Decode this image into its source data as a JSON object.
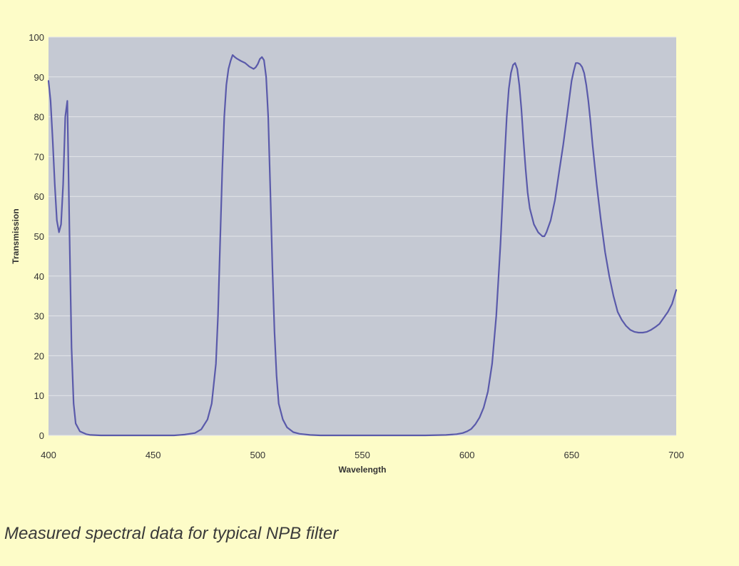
{
  "caption": "Measured spectral data for typical NPB filter",
  "chart_data": {
    "type": "line",
    "title": "",
    "xlabel": "Wavelength",
    "ylabel": "Transmission",
    "xlim": [
      400,
      700
    ],
    "ylim": [
      0,
      100
    ],
    "x_ticks": [
      400,
      450,
      500,
      550,
      600,
      650,
      700
    ],
    "y_ticks": [
      0,
      10,
      20,
      30,
      40,
      50,
      60,
      70,
      80,
      90,
      100
    ],
    "grid": "horizontal",
    "legend": "none",
    "colors": {
      "plot_background": "#c5c9d3",
      "page_background": "#fdfcc8",
      "line": "#5a5aaa",
      "grid": "#e4e5ea"
    },
    "series": [
      {
        "x": [
          400,
          401,
          402,
          403,
          404,
          405,
          406,
          407,
          408,
          409,
          410,
          411,
          412,
          413,
          415,
          418,
          420,
          425,
          430,
          440,
          450,
          460,
          465,
          470,
          473,
          476,
          478,
          480,
          481,
          482,
          483,
          484,
          485,
          486,
          487,
          488,
          489,
          490,
          492,
          494,
          496,
          498,
          499,
          500,
          501,
          502,
          503,
          504,
          505,
          506,
          507,
          508,
          509,
          510,
          512,
          514,
          517,
          520,
          525,
          530,
          540,
          550,
          560,
          570,
          580,
          590,
          595,
          598,
          600,
          602,
          604,
          606,
          608,
          610,
          612,
          614,
          616,
          618,
          619,
          620,
          621,
          622,
          623,
          624,
          625,
          626,
          627,
          628,
          629,
          630,
          632,
          634,
          636,
          637,
          638,
          640,
          642,
          644,
          646,
          648,
          650,
          651,
          652,
          653,
          654,
          655,
          656,
          657,
          658,
          659,
          660,
          662,
          664,
          666,
          668,
          670,
          672,
          674,
          676,
          678,
          680,
          682,
          684,
          686,
          688,
          690,
          692,
          694,
          696,
          698,
          700
        ],
        "y": [
          89,
          84,
          74,
          63,
          54,
          51,
          53,
          63,
          80,
          84,
          52,
          22,
          8,
          3,
          1,
          0.3,
          0.1,
          0,
          0,
          0,
          0,
          0,
          0.2,
          0.6,
          1.5,
          4,
          8,
          18,
          30,
          48,
          66,
          80,
          88,
          92,
          94,
          95.5,
          95,
          94.6,
          94,
          93.5,
          92.6,
          92,
          92.4,
          93.2,
          94.5,
          95,
          94.2,
          90,
          80,
          62,
          42,
          26,
          15,
          8,
          4,
          2,
          0.8,
          0.4,
          0.1,
          0,
          0,
          0,
          0,
          0,
          0,
          0.1,
          0.3,
          0.6,
          1,
          1.6,
          2.8,
          4.5,
          7,
          11,
          18,
          30,
          48,
          70,
          80,
          87,
          91,
          93,
          93.5,
          92,
          88,
          82,
          74,
          67,
          61,
          57,
          53,
          51,
          50,
          50,
          51,
          54,
          59,
          66,
          73,
          81,
          89,
          91.5,
          93.5,
          93.5,
          93.2,
          92.5,
          91,
          88,
          84,
          79,
          73,
          63,
          54,
          46,
          40,
          35,
          31,
          29,
          27.5,
          26.5,
          26,
          25.8,
          25.8,
          26,
          26.5,
          27.2,
          28,
          29.5,
          31,
          33,
          36.5
        ]
      }
    ]
  }
}
